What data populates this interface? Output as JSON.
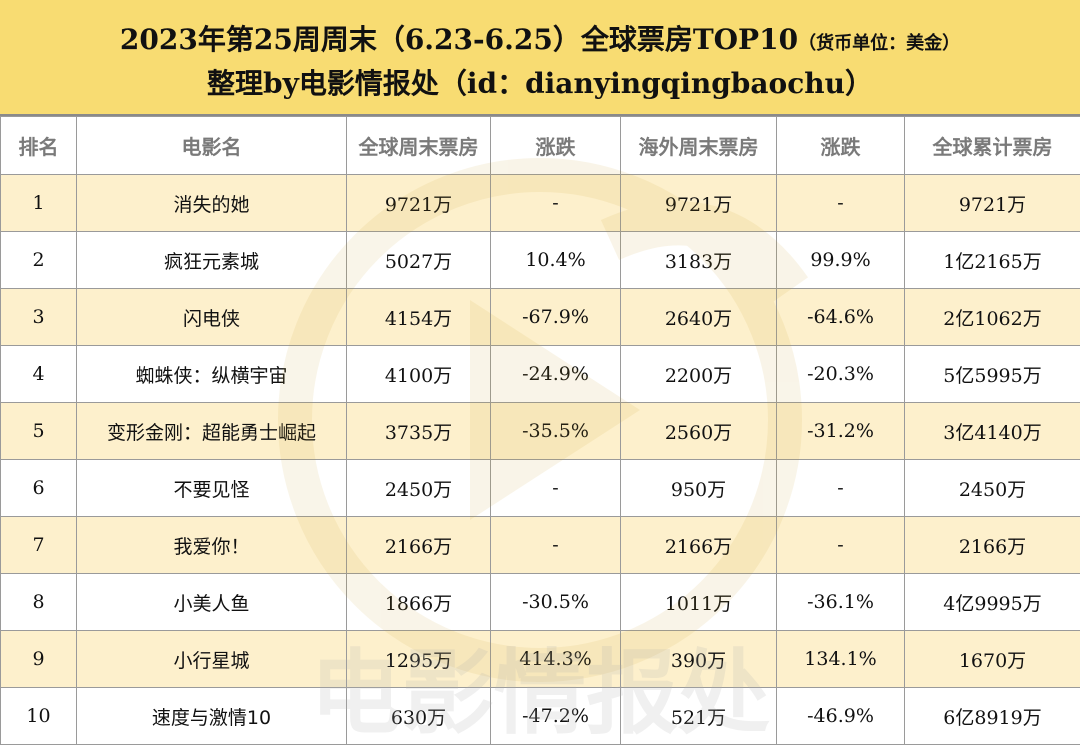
{
  "header": {
    "title": "2023年第25周周末（6.23-6.25）全球票房TOP10",
    "unit_note": "（货币单位：美金）",
    "subtitle": "整理by电影情报处（id：dianyingqingbaochu）"
  },
  "watermark_text": "电影情报处",
  "columns": [
    "排名",
    "电影名",
    "全球周末票房",
    "涨跌",
    "海外周末票房",
    "涨跌",
    "全球累计票房"
  ],
  "colors": {
    "header_bg": "#f8dc72",
    "row_highlight": "#fcecbe",
    "change_up": "#1aa6e0",
    "change_down": "#e8232a",
    "grid_line": "#9a9a9a"
  },
  "rows": [
    {
      "rank": "1",
      "title": "消失的她",
      "global_weekend": "9721万",
      "global_change": "-",
      "global_trend": "flat",
      "overseas_weekend": "9721万",
      "overseas_change": "-",
      "overseas_trend": "flat",
      "global_total": "9721万"
    },
    {
      "rank": "2",
      "title": "疯狂元素城",
      "global_weekend": "5027万",
      "global_change": "10.4%",
      "global_trend": "up",
      "overseas_weekend": "3183万",
      "overseas_change": "99.9%",
      "overseas_trend": "up",
      "global_total": "1亿2165万"
    },
    {
      "rank": "3",
      "title": "闪电侠",
      "global_weekend": "4154万",
      "global_change": "-67.9%",
      "global_trend": "down",
      "overseas_weekend": "2640万",
      "overseas_change": "-64.6%",
      "overseas_trend": "down",
      "global_total": "2亿1062万"
    },
    {
      "rank": "4",
      "title": "蜘蛛侠：纵横宇宙",
      "global_weekend": "4100万",
      "global_change": "-24.9%",
      "global_trend": "down",
      "overseas_weekend": "2200万",
      "overseas_change": "-20.3%",
      "overseas_trend": "down",
      "global_total": "5亿5995万"
    },
    {
      "rank": "5",
      "title": "变形金刚：超能勇士崛起",
      "global_weekend": "3735万",
      "global_change": "-35.5%",
      "global_trend": "down",
      "overseas_weekend": "2560万",
      "overseas_change": "-31.2%",
      "overseas_trend": "down",
      "global_total": "3亿4140万"
    },
    {
      "rank": "6",
      "title": "不要见怪",
      "global_weekend": "2450万",
      "global_change": "-",
      "global_trend": "flat",
      "overseas_weekend": "950万",
      "overseas_change": "-",
      "overseas_trend": "flat",
      "global_total": "2450万"
    },
    {
      "rank": "7",
      "title": "我爱你！",
      "global_weekend": "2166万",
      "global_change": "-",
      "global_trend": "flat",
      "overseas_weekend": "2166万",
      "overseas_change": "-",
      "overseas_trend": "flat",
      "global_total": "2166万"
    },
    {
      "rank": "8",
      "title": "小美人鱼",
      "global_weekend": "1866万",
      "global_change": "-30.5%",
      "global_trend": "down",
      "overseas_weekend": "1011万",
      "overseas_change": "-36.1%",
      "overseas_trend": "down",
      "global_total": "4亿9995万"
    },
    {
      "rank": "9",
      "title": "小行星城",
      "global_weekend": "1295万",
      "global_change": "414.3%",
      "global_trend": "up",
      "overseas_weekend": "390万",
      "overseas_change": "134.1%",
      "overseas_trend": "up",
      "global_total": "1670万"
    },
    {
      "rank": "10",
      "title": "速度与激情10",
      "global_weekend": "630万",
      "global_change": "-47.2%",
      "global_trend": "down",
      "overseas_weekend": "521万",
      "overseas_change": "-46.9%",
      "overseas_trend": "down",
      "global_total": "6亿8919万"
    }
  ]
}
